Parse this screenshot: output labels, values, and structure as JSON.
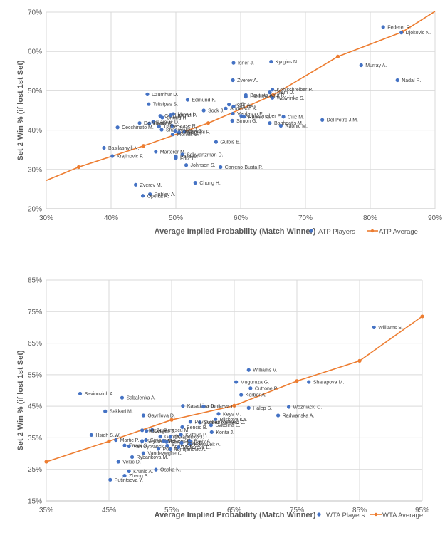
{
  "chart_data": [
    {
      "id": "atp",
      "type": "scatter",
      "title": "",
      "xlabel": "Average Implied Probability (Match Winner)",
      "ylabel": "Set 2 Win % (if lost 1st Set)",
      "xlim": [
        0.3,
        0.9
      ],
      "ylim": [
        0.2,
        0.7
      ],
      "xticks": [
        "30%",
        "40%",
        "50%",
        "60%",
        "70%",
        "80%",
        "90%"
      ],
      "yticks": [
        "20%",
        "30%",
        "40%",
        "50%",
        "60%",
        "70%"
      ],
      "grid": true,
      "legend_position": "bottom-right",
      "colors": {
        "players": "#4472C4",
        "average": "#ED7D31"
      },
      "series": [
        {
          "name": "ATP Players",
          "kind": "points",
          "points": [
            {
              "label": "Federer R.",
              "x": 0.82,
              "y": 0.662
            },
            {
              "label": "Djokovic N.",
              "x": 0.848,
              "y": 0.648
            },
            {
              "label": "Murray A.",
              "x": 0.786,
              "y": 0.565
            },
            {
              "label": "Nadal R.",
              "x": 0.842,
              "y": 0.527
            },
            {
              "label": "Isner J.",
              "x": 0.589,
              "y": 0.571
            },
            {
              "label": "Kyrgios N.",
              "x": 0.647,
              "y": 0.574
            },
            {
              "label": "Zverev A.",
              "x": 0.588,
              "y": 0.527
            },
            {
              "label": "Kohlschreiber P.",
              "x": 0.649,
              "y": 0.503
            },
            {
              "label": "Thiem D.",
              "x": 0.645,
              "y": 0.496
            },
            {
              "label": "Wawrinka S.",
              "x": 0.649,
              "y": 0.482
            },
            {
              "label": "Bautista Agut R.",
              "x": 0.608,
              "y": 0.489
            },
            {
              "label": "Dimitrov G.",
              "x": 0.608,
              "y": 0.485
            },
            {
              "label": "Goffin D.",
              "x": 0.582,
              "y": 0.465
            },
            {
              "label": "Anderson K.",
              "x": 0.577,
              "y": 0.455
            },
            {
              "label": "Pouille L.",
              "x": 0.589,
              "y": 0.46
            },
            {
              "label": "Verdasco F.",
              "x": 0.588,
              "y": 0.442
            },
            {
              "label": "Kohlschreiber P.",
              "x": 0.601,
              "y": 0.436
            },
            {
              "label": "Raonic M.",
              "x": 0.605,
              "y": 0.434
            },
            {
              "label": "Cilic M.",
              "x": 0.666,
              "y": 0.434
            },
            {
              "label": "Simon G.",
              "x": 0.587,
              "y": 0.424
            },
            {
              "label": "Baghdatis M.",
              "x": 0.645,
              "y": 0.418
            },
            {
              "label": "Raonic M.",
              "x": 0.662,
              "y": 0.411
            },
            {
              "label": "Del Potro J.M.",
              "x": 0.726,
              "y": 0.426
            },
            {
              "label": "Sock J.",
              "x": 0.543,
              "y": 0.45
            },
            {
              "label": "Edmund K.",
              "x": 0.518,
              "y": 0.477
            },
            {
              "label": "Dzumhur D.",
              "x": 0.456,
              "y": 0.491
            },
            {
              "label": "Tsitsipas S.",
              "x": 0.458,
              "y": 0.466
            },
            {
              "label": "Mayer L.",
              "x": 0.496,
              "y": 0.441
            },
            {
              "label": "Coric B.",
              "x": 0.476,
              "y": 0.436
            },
            {
              "label": "Chung H.",
              "x": 0.479,
              "y": 0.432
            },
            {
              "label": "Lorenzi P.",
              "x": 0.492,
              "y": 0.438
            },
            {
              "label": "Lajovic D.",
              "x": 0.465,
              "y": 0.421
            },
            {
              "label": "Evans D.",
              "x": 0.459,
              "y": 0.417
            },
            {
              "label": "De Minaur A.",
              "x": 0.444,
              "y": 0.418
            },
            {
              "label": "Haase R.",
              "x": 0.494,
              "y": 0.411
            },
            {
              "label": "Tiafoe F.",
              "x": 0.474,
              "y": 0.409
            },
            {
              "label": "Shapovalov D.",
              "x": 0.478,
              "y": 0.401
            },
            {
              "label": "Cecchinato M.",
              "x": 0.41,
              "y": 0.407
            },
            {
              "label": "Fognini F.",
              "x": 0.513,
              "y": 0.396
            },
            {
              "label": "Querrey S.",
              "x": 0.499,
              "y": 0.398
            },
            {
              "label": "Paire B.",
              "x": 0.505,
              "y": 0.394
            },
            {
              "label": "Monfils G.",
              "x": 0.495,
              "y": 0.389
            },
            {
              "label": "Gulbis E.",
              "x": 0.562,
              "y": 0.37
            },
            {
              "label": "Basilashvili N.",
              "x": 0.389,
              "y": 0.355
            },
            {
              "label": "Krajinovic F.",
              "x": 0.402,
              "y": 0.334
            },
            {
              "label": "Marterer M.",
              "x": 0.469,
              "y": 0.345
            },
            {
              "label": "Schwartzman D.",
              "x": 0.51,
              "y": 0.338
            },
            {
              "label": "Pella G.",
              "x": 0.5,
              "y": 0.333
            },
            {
              "label": "Fritz T.",
              "x": 0.5,
              "y": 0.329
            },
            {
              "label": "Johnson S.",
              "x": 0.516,
              "y": 0.311
            },
            {
              "label": "Carreno-Busta P.",
              "x": 0.569,
              "y": 0.306
            },
            {
              "label": "Chung H.",
              "x": 0.53,
              "y": 0.266
            },
            {
              "label": "Zverev M.",
              "x": 0.438,
              "y": 0.261
            },
            {
              "label": "Rublev A.",
              "x": 0.46,
              "y": 0.237
            },
            {
              "label": "Opelka R.",
              "x": 0.449,
              "y": 0.233
            }
          ]
        },
        {
          "name": "ATP Average",
          "kind": "line",
          "x": [
            0.3,
            0.35,
            0.45,
            0.55,
            0.65,
            0.75,
            0.85,
            0.9
          ],
          "y": [
            0.272,
            0.306,
            0.36,
            0.418,
            0.489,
            0.587,
            0.65,
            0.702
          ],
          "markers_at": [
            0.35,
            0.45,
            0.55,
            0.65,
            0.75,
            0.85
          ]
        }
      ],
      "legend": [
        {
          "label": "ATP Players",
          "marker": "dot"
        },
        {
          "label": "ATP Average",
          "marker": "line-dot"
        }
      ]
    },
    {
      "id": "wta",
      "type": "scatter",
      "title": "",
      "xlabel": "Average Implied Probability (Match Winner)",
      "ylabel": "Set 2 Win % (if lost 1st Set)",
      "xlim": [
        0.35,
        0.95
      ],
      "ylim": [
        0.15,
        0.85
      ],
      "xticks": [
        "35%",
        "45%",
        "55%",
        "65%",
        "75%",
        "85%",
        "95%"
      ],
      "yticks": [
        "15%",
        "25%",
        "35%",
        "45%",
        "55%",
        "65%",
        "75%",
        "85%"
      ],
      "grid": true,
      "legend_position": "bottom-right",
      "colors": {
        "players": "#4472C4",
        "average": "#ED7D31"
      },
      "series": [
        {
          "name": "WTA Players",
          "kind": "points",
          "points": [
            {
              "label": "Williams S.",
              "x": 0.873,
              "y": 0.7
            },
            {
              "label": "Williams V.",
              "x": 0.673,
              "y": 0.565
            },
            {
              "label": "Muguruza G.",
              "x": 0.653,
              "y": 0.527
            },
            {
              "label": "Cutrone P.",
              "x": 0.676,
              "y": 0.507
            },
            {
              "label": "Kerber A.",
              "x": 0.661,
              "y": 0.486
            },
            {
              "label": "Sharapova M.",
              "x": 0.769,
              "y": 0.527
            },
            {
              "label": "Halep S.",
              "x": 0.673,
              "y": 0.445
            },
            {
              "label": "Wozniacki C.",
              "x": 0.737,
              "y": 0.448
            },
            {
              "label": "Radwanska A.",
              "x": 0.72,
              "y": 0.421
            },
            {
              "label": "Kasatkina D.",
              "x": 0.568,
              "y": 0.451
            },
            {
              "label": "Cibulkova D.",
              "x": 0.601,
              "y": 0.449
            },
            {
              "label": "Keys M.",
              "x": 0.625,
              "y": 0.426
            },
            {
              "label": "Pliskova Ka.",
              "x": 0.62,
              "y": 0.409
            },
            {
              "label": "Suarez Navarro C.",
              "x": 0.595,
              "y": 0.399
            },
            {
              "label": "Svitolina E.",
              "x": 0.613,
              "y": 0.39
            },
            {
              "label": "Konta J.",
              "x": 0.614,
              "y": 0.368
            },
            {
              "label": "Pavlyuchenkova A.",
              "x": 0.58,
              "y": 0.401
            },
            {
              "label": "Bencic B.",
              "x": 0.567,
              "y": 0.384
            },
            {
              "label": "Buzarnescu M.",
              "x": 0.519,
              "y": 0.375
            },
            {
              "label": "Goerges J.",
              "x": 0.51,
              "y": 0.372
            },
            {
              "label": "Hercog P.",
              "x": 0.503,
              "y": 0.374
            },
            {
              "label": "Gavrilova D.",
              "x": 0.505,
              "y": 0.421
            },
            {
              "label": "Sakkari M.",
              "x": 0.444,
              "y": 0.434
            },
            {
              "label": "Sabalenka A.",
              "x": 0.471,
              "y": 0.477
            },
            {
              "label": "Savinovich A.",
              "x": 0.404,
              "y": 0.49
            },
            {
              "label": "Hsieh S.W.",
              "x": 0.422,
              "y": 0.359
            },
            {
              "label": "Martic P.",
              "x": 0.461,
              "y": 0.343
            },
            {
              "label": "Strycova B.",
              "x": 0.503,
              "y": 0.34
            },
            {
              "label": "Siniakova K.",
              "x": 0.509,
              "y": 0.343
            },
            {
              "label": "Mertens E.",
              "x": 0.537,
              "y": 0.341
            },
            {
              "label": "Stosur S.",
              "x": 0.542,
              "y": 0.337
            },
            {
              "label": "Barty A.",
              "x": 0.579,
              "y": 0.34
            },
            {
              "label": "Vekic D.",
              "x": 0.566,
              "y": 0.334
            },
            {
              "label": "Kontaveit A.",
              "x": 0.579,
              "y": 0.33
            },
            {
              "label": "Garcia C.",
              "x": 0.532,
              "y": 0.354
            },
            {
              "label": "Ostapenko J.",
              "x": 0.548,
              "y": 0.353
            },
            {
              "label": "Kvitova P.",
              "x": 0.565,
              "y": 0.36
            },
            {
              "label": "Errani S.",
              "x": 0.475,
              "y": 0.326
            },
            {
              "label": "Van Uytvanck A.",
              "x": 0.482,
              "y": 0.323
            },
            {
              "label": "Puig M.",
              "x": 0.529,
              "y": 0.315
            },
            {
              "label": "Bertens K.",
              "x": 0.543,
              "y": 0.325
            },
            {
              "label": "Tomljanovic A.",
              "x": 0.548,
              "y": 0.314
            },
            {
              "label": "Makarova E.",
              "x": 0.561,
              "y": 0.32
            },
            {
              "label": "Vandeweghe C.",
              "x": 0.505,
              "y": 0.301
            },
            {
              "label": "Rybarikova M.",
              "x": 0.487,
              "y": 0.289
            },
            {
              "label": "Vekic D.",
              "x": 0.465,
              "y": 0.274
            },
            {
              "label": "Osaka N.",
              "x": 0.525,
              "y": 0.249
            },
            {
              "label": "Krunic A.",
              "x": 0.482,
              "y": 0.244
            },
            {
              "label": "Zhang S.",
              "x": 0.475,
              "y": 0.23
            },
            {
              "label": "Putintseva Y.",
              "x": 0.452,
              "y": 0.217
            }
          ]
        },
        {
          "name": "WTA Average",
          "kind": "line",
          "x": [
            0.35,
            0.45,
            0.55,
            0.65,
            0.75,
            0.85,
            0.95
          ],
          "y": [
            0.274,
            0.339,
            0.407,
            0.452,
            0.53,
            0.594,
            0.735
          ],
          "markers_at": [
            0.35,
            0.45,
            0.55,
            0.65,
            0.75,
            0.85,
            0.95
          ]
        }
      ],
      "legend": [
        {
          "label": "WTA Players",
          "marker": "dot"
        },
        {
          "label": "WTA Average",
          "marker": "line-dot"
        }
      ]
    }
  ]
}
